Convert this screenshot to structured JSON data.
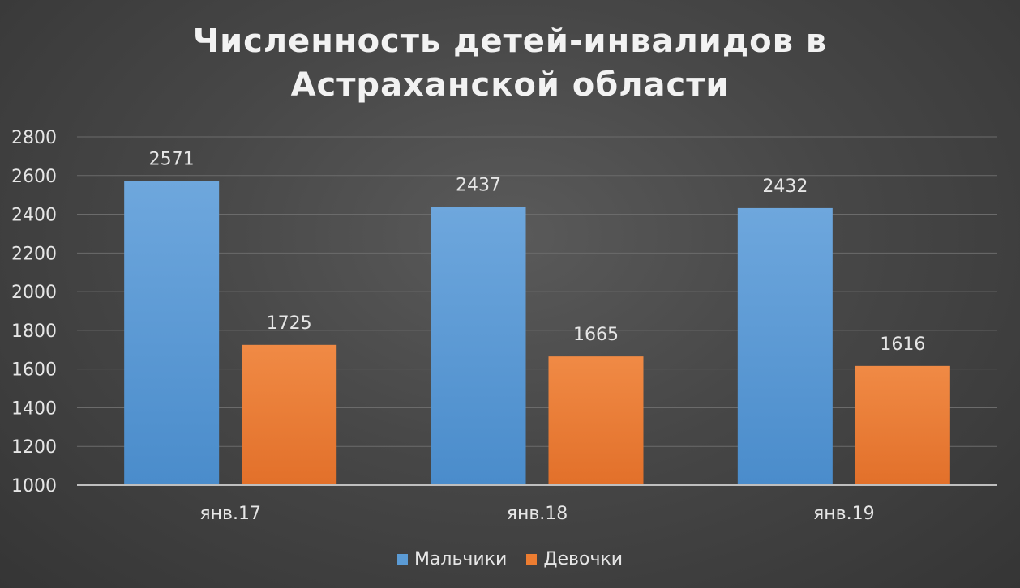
{
  "chart_data": {
    "type": "bar",
    "title_lines": [
      "Численность детей-инвалидов в",
      "Астраханской области"
    ],
    "categories": [
      "янв.17",
      "янв.18",
      "янв.19"
    ],
    "series": [
      {
        "name": "Мальчики",
        "values": [
          2571,
          2437,
          2432
        ],
        "color": "#5b9bd5"
      },
      {
        "name": "Девочки",
        "values": [
          1725,
          1665,
          1616
        ],
        "color": "#ed7d31"
      }
    ],
    "ylim": [
      1000,
      2800
    ],
    "yticks": [
      1000,
      1200,
      1400,
      1600,
      1800,
      2000,
      2200,
      2400,
      2600,
      2800
    ],
    "grid": true,
    "legend_position": "bottom",
    "data_labels": true
  }
}
